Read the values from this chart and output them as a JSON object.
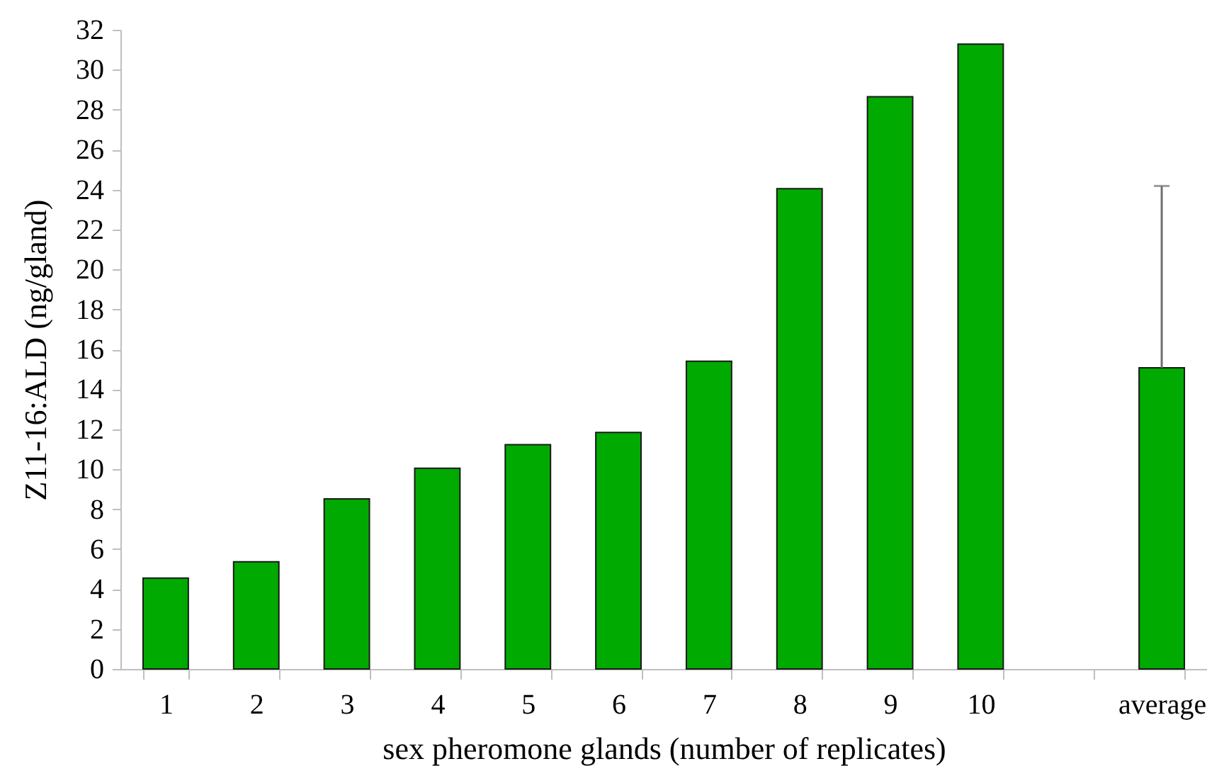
{
  "chart_data": {
    "type": "bar",
    "xlabel": "sex pheromone glands (number of replicates)",
    "ylabel": "Z11-16:ALD (ng/gland)",
    "categories": [
      "1",
      "2",
      "3",
      "4",
      "5",
      "6",
      "7",
      "8",
      "9",
      "10",
      null,
      "average"
    ],
    "values": [
      4.55,
      5.37,
      8.51,
      10.05,
      11.23,
      11.84,
      15.41,
      24.04,
      28.65,
      31.28,
      null,
      15.08
    ],
    "errors": [
      null,
      null,
      null,
      null,
      null,
      null,
      null,
      null,
      null,
      null,
      null,
      [
        15.08,
        24.18
      ]
    ],
    "color": "#00aa00",
    "ylim": [
      0,
      32
    ],
    "yticks": [
      0,
      2,
      4,
      6,
      8,
      10,
      12,
      14,
      16,
      18,
      20,
      22,
      24,
      26,
      28,
      30,
      32
    ]
  }
}
